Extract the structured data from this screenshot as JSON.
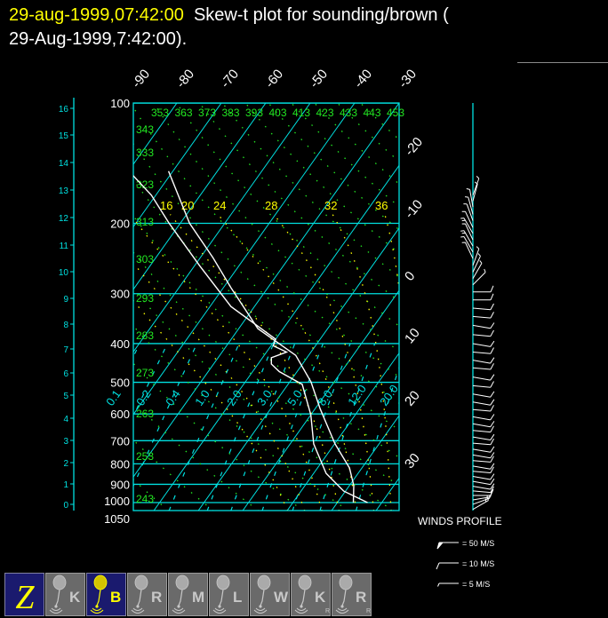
{
  "title": {
    "date_highlight": "29-aug-1999,07:42:00",
    "line1_rest": "  Skew-t plot for sounding/brown (",
    "line2": "29-Aug-1999,7:42:00)."
  },
  "colors": {
    "background": "#000000",
    "isobar": "#00e0e0",
    "isotherm": "#00e0e0",
    "dry_adiabat": "#22e622",
    "moist_adiabat": "#ffff00",
    "mixing_ratio": "#00e0e0",
    "sounding": "#ffffff",
    "title_highlight": "#ffff00",
    "button_active": "#1a1a6e",
    "button_inactive": "#6a6a6a"
  },
  "chart_data": {
    "type": "line",
    "title": "Skew-t plot for sounding/brown",
    "x_scale": "skewed temperature (°C)",
    "y_scale": "log pressure (hPa)",
    "ylim": [
      1050,
      100
    ],
    "pressure_ticks": [
      100,
      200,
      300,
      400,
      500,
      600,
      700,
      800,
      900,
      1000,
      1050
    ],
    "height_km_ticks": [
      0,
      1,
      2,
      3,
      4,
      5,
      6,
      7,
      8,
      9,
      10,
      11,
      12,
      13,
      14,
      15,
      16
    ],
    "isotherms": [
      -90,
      -80,
      -70,
      -60,
      -50,
      -40,
      -30,
      -20,
      -10,
      0,
      10,
      20,
      30
    ],
    "isotherm_labels": [
      "-90",
      "-80",
      "-70",
      "-60",
      "-50",
      "-40",
      "-30",
      "-20",
      "-10",
      "0",
      "10",
      "20",
      "30"
    ],
    "dry_adiabats_K": [
      243,
      253,
      263,
      273,
      283,
      293,
      303,
      313,
      323,
      333,
      343,
      353,
      363,
      373,
      383,
      393,
      403,
      413,
      423,
      433,
      443,
      453
    ],
    "moist_adiabats_C": [
      8,
      12,
      16,
      20,
      24,
      28,
      32,
      36
    ],
    "moist_adiabat_labels": [
      "16",
      "20",
      "24",
      "28",
      "32",
      "36"
    ],
    "mixing_ratios_gkg": [
      0.1,
      0.2,
      0.4,
      1.0,
      2.0,
      3.0,
      5.0,
      8.0,
      12.0,
      20.0
    ],
    "mixing_ratio_labels": [
      "0.1",
      "0.2",
      "0.4",
      "1.0",
      "2.0",
      "3.0",
      "5.0",
      "8.0",
      "12.0",
      "20.0"
    ],
    "series": [
      {
        "points": [
          [
            1000,
            23.6
          ],
          [
            907,
            21.0
          ],
          [
            819,
            17.2
          ],
          [
            713,
            10.1
          ],
          [
            634,
            4.9
          ],
          [
            582,
            1.1
          ],
          [
            499,
            -5.2
          ],
          [
            428,
            -12.9
          ],
          [
            367,
            -25.7
          ],
          [
            291,
            -38.1
          ],
          [
            244,
            -47.1
          ],
          [
            200,
            -57.9
          ],
          [
            148,
            -71.0
          ]
        ]
      },
      {
        "points": [
          [
            1000,
            26.8
          ],
          [
            936,
            19.6
          ],
          [
            845,
            12.8
          ],
          [
            713,
            5.3
          ],
          [
            603,
            0.0
          ],
          [
            506,
            -6.8
          ],
          [
            470,
            -14.0
          ],
          [
            450,
            -17.0
          ],
          [
            434,
            -18.0
          ],
          [
            420,
            -15.5
          ],
          [
            405,
            -19.5
          ],
          [
            390,
            -20.0
          ],
          [
            323,
            -35.3
          ],
          [
            256,
            -48.7
          ],
          [
            200,
            -62.5
          ],
          [
            170,
            -71.0
          ],
          [
            148,
            -79.9
          ]
        ]
      }
    ],
    "winds": {
      "title": "WINDS PROFILE",
      "units": "M/S",
      "legend": [
        {
          "speed": 50,
          "label": "= 50 M/S"
        },
        {
          "speed": 10,
          "label": "= 10 M/S"
        },
        {
          "speed": 5,
          "label": "= 5 M/S"
        }
      ],
      "levels": [
        [
          1040,
          60,
          8
        ],
        [
          1010,
          70,
          9
        ],
        [
          985,
          80,
          10
        ],
        [
          960,
          90,
          10
        ],
        [
          935,
          95,
          11
        ],
        [
          910,
          100,
          12
        ],
        [
          885,
          100,
          12
        ],
        [
          860,
          100,
          12
        ],
        [
          835,
          95,
          12
        ],
        [
          810,
          100,
          12
        ],
        [
          785,
          95,
          12
        ],
        [
          760,
          100,
          11
        ],
        [
          735,
          100,
          12
        ],
        [
          710,
          95,
          12
        ],
        [
          685,
          100,
          12
        ],
        [
          660,
          95,
          11
        ],
        [
          635,
          100,
          12
        ],
        [
          610,
          100,
          11
        ],
        [
          585,
          95,
          12
        ],
        [
          560,
          100,
          11
        ],
        [
          535,
          100,
          12
        ],
        [
          510,
          95,
          12
        ],
        [
          485,
          100,
          11
        ],
        [
          460,
          95,
          12
        ],
        [
          440,
          100,
          11
        ],
        [
          420,
          95,
          12
        ],
        [
          400,
          100,
          11
        ],
        [
          380,
          95,
          12
        ],
        [
          360,
          100,
          11
        ],
        [
          342,
          95,
          10
        ],
        [
          326,
          95,
          10
        ],
        [
          311,
          90,
          10
        ],
        [
          297,
          90,
          10
        ],
        [
          285,
          45,
          6
        ],
        [
          275,
          30,
          6
        ],
        [
          265,
          25,
          5
        ],
        [
          255,
          20,
          5
        ],
        [
          245,
          335,
          6
        ],
        [
          236,
          330,
          7
        ],
        [
          228,
          330,
          8
        ],
        [
          220,
          335,
          7
        ],
        [
          212,
          330,
          8
        ],
        [
          205,
          335,
          7
        ],
        [
          197,
          340,
          6
        ],
        [
          190,
          345,
          5
        ],
        [
          182,
          350,
          5
        ],
        [
          176,
          15,
          6
        ],
        [
          170,
          20,
          6
        ]
      ]
    }
  },
  "toolbar": {
    "buttons": [
      {
        "letter": "Z",
        "sub": "",
        "active": true
      },
      {
        "letter": "K",
        "sub": "",
        "active": false
      },
      {
        "letter": "B",
        "sub": "",
        "active": true
      },
      {
        "letter": "R",
        "sub": "",
        "active": false
      },
      {
        "letter": "M",
        "sub": "",
        "active": false
      },
      {
        "letter": "L",
        "sub": "",
        "active": false
      },
      {
        "letter": "W",
        "sub": "",
        "active": false
      },
      {
        "letter": "K",
        "sub": "R",
        "active": false
      },
      {
        "letter": "R",
        "sub": "R",
        "active": false
      }
    ]
  }
}
